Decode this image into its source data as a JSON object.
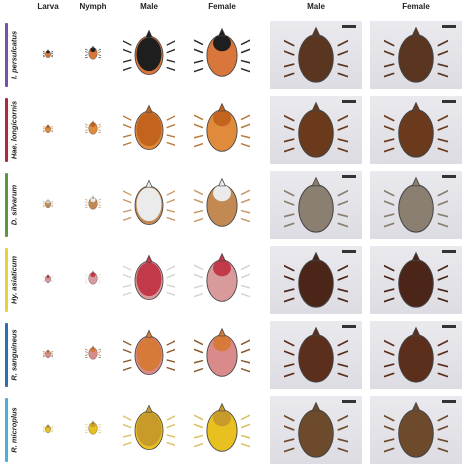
{
  "columns": {
    "larva": "Larva",
    "nymph": "Nymph",
    "male": "Male",
    "female": "Female",
    "photo_male": "Male",
    "photo_female": "Female"
  },
  "rows": [
    {
      "species": "I. persulcatus",
      "bar_color": "#7d4fa0",
      "body": "#d9763b",
      "scutum": "#1e1e1e",
      "legs": "#2a2a2a",
      "photo_body": "#5a3520"
    },
    {
      "species": "Hae. longicornis",
      "bar_color": "#b02a35",
      "body": "#e08a3c",
      "scutum": "#c2641e",
      "legs": "#b5793c",
      "photo_body": "#6b3a1c"
    },
    {
      "species": "D. silvarum",
      "bar_color": "#5a9a3a",
      "body": "#c28a52",
      "scutum": "#ebebeb",
      "legs": "#c69a66",
      "photo_body": "#8a7f70"
    },
    {
      "species": "Hy. asiaticum",
      "bar_color": "#e8d430",
      "body": "#d89a9a",
      "scutum": "#c23a4a",
      "legs": "#d4d4d4",
      "photo_body": "#4a2518"
    },
    {
      "species": "R. sanguineus",
      "bar_color": "#2d6fb3",
      "body": "#d98a8a",
      "scutum": "#d67a3a",
      "legs": "#8a5a2a",
      "photo_body": "#5c2e1c"
    },
    {
      "species": "R. microplus",
      "bar_color": "#4ab0d8",
      "body": "#e8c020",
      "scutum": "#c89a2a",
      "legs": "#d8c060",
      "photo_body": "#6e4a2c"
    }
  ]
}
